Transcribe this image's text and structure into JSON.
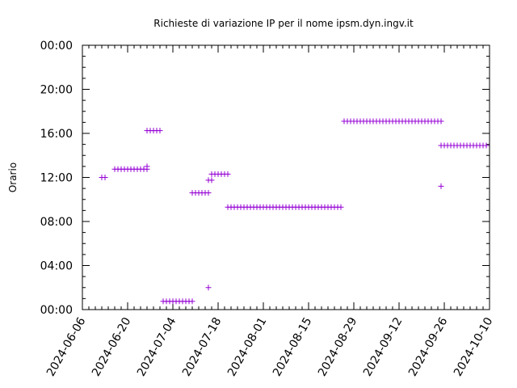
{
  "chart_data": {
    "type": "scatter",
    "title": "Richieste di variazione IP per il nome ipsm.dyn.ingv.it",
    "ylabel": "Orario",
    "xlabel": "",
    "xlim": [
      "2024-06-06",
      "2024-10-10"
    ],
    "ylim": [
      0,
      24
    ],
    "x_ticks": [
      "2024-06-06",
      "2024-06-20",
      "2024-07-04",
      "2024-07-18",
      "2024-08-01",
      "2024-08-15",
      "2024-08-29",
      "2024-09-12",
      "2024-09-26",
      "2024-10-10"
    ],
    "y_ticks": [
      {
        "v": 0,
        "label": "00:00"
      },
      {
        "v": 4,
        "label": "04:00"
      },
      {
        "v": 8,
        "label": "08:00"
      },
      {
        "v": 12,
        "label": "12:00"
      },
      {
        "v": 16,
        "label": "16:00"
      },
      {
        "v": 20,
        "label": "20:00"
      },
      {
        "v": 24,
        "label": "00:00"
      }
    ],
    "marker": "+",
    "color": "#9400d3",
    "grid": false,
    "series": [
      {
        "points": [
          [
            "2024-06-12",
            12.0
          ],
          [
            "2024-06-13",
            12.0
          ],
          [
            "2024-06-16",
            12.75
          ],
          [
            "2024-06-17",
            12.75
          ],
          [
            "2024-06-18",
            12.75
          ],
          [
            "2024-06-19",
            12.75
          ],
          [
            "2024-06-20",
            12.75
          ],
          [
            "2024-06-21",
            12.75
          ],
          [
            "2024-06-22",
            12.75
          ],
          [
            "2024-06-23",
            12.75
          ],
          [
            "2024-06-24",
            12.75
          ],
          [
            "2024-06-25",
            12.75
          ],
          [
            "2024-06-26",
            12.75
          ],
          [
            "2024-06-26",
            13.0
          ],
          [
            "2024-06-26",
            16.25
          ],
          [
            "2024-06-27",
            16.25
          ],
          [
            "2024-06-28",
            16.25
          ],
          [
            "2024-06-29",
            16.25
          ],
          [
            "2024-06-30",
            16.25
          ],
          [
            "2024-07-01",
            0.75
          ],
          [
            "2024-07-02",
            0.75
          ],
          [
            "2024-07-03",
            0.75
          ],
          [
            "2024-07-04",
            0.75
          ],
          [
            "2024-07-05",
            0.75
          ],
          [
            "2024-07-06",
            0.75
          ],
          [
            "2024-07-07",
            0.75
          ],
          [
            "2024-07-08",
            0.75
          ],
          [
            "2024-07-09",
            0.75
          ],
          [
            "2024-07-10",
            0.75
          ],
          [
            "2024-07-10",
            10.6
          ],
          [
            "2024-07-11",
            10.6
          ],
          [
            "2024-07-12",
            10.6
          ],
          [
            "2024-07-13",
            10.6
          ],
          [
            "2024-07-14",
            10.6
          ],
          [
            "2024-07-15",
            10.6
          ],
          [
            "2024-07-15",
            2.0
          ],
          [
            "2024-07-15",
            11.75
          ],
          [
            "2024-07-16",
            11.75
          ],
          [
            "2024-07-16",
            12.3
          ],
          [
            "2024-07-17",
            12.3
          ],
          [
            "2024-07-18",
            12.3
          ],
          [
            "2024-07-19",
            12.3
          ],
          [
            "2024-07-20",
            12.3
          ],
          [
            "2024-07-21",
            12.3
          ],
          [
            "2024-07-21",
            9.3
          ],
          [
            "2024-07-22",
            9.3
          ],
          [
            "2024-07-23",
            9.3
          ],
          [
            "2024-07-24",
            9.3
          ],
          [
            "2024-07-25",
            9.3
          ],
          [
            "2024-07-26",
            9.3
          ],
          [
            "2024-07-27",
            9.3
          ],
          [
            "2024-07-28",
            9.3
          ],
          [
            "2024-07-29",
            9.3
          ],
          [
            "2024-07-30",
            9.3
          ],
          [
            "2024-07-31",
            9.3
          ],
          [
            "2024-08-01",
            9.3
          ],
          [
            "2024-08-02",
            9.3
          ],
          [
            "2024-08-03",
            9.3
          ],
          [
            "2024-08-04",
            9.3
          ],
          [
            "2024-08-05",
            9.3
          ],
          [
            "2024-08-06",
            9.3
          ],
          [
            "2024-08-07",
            9.3
          ],
          [
            "2024-08-08",
            9.3
          ],
          [
            "2024-08-09",
            9.3
          ],
          [
            "2024-08-10",
            9.3
          ],
          [
            "2024-08-11",
            9.3
          ],
          [
            "2024-08-12",
            9.3
          ],
          [
            "2024-08-13",
            9.3
          ],
          [
            "2024-08-14",
            9.3
          ],
          [
            "2024-08-15",
            9.3
          ],
          [
            "2024-08-16",
            9.3
          ],
          [
            "2024-08-17",
            9.3
          ],
          [
            "2024-08-18",
            9.3
          ],
          [
            "2024-08-19",
            9.3
          ],
          [
            "2024-08-20",
            9.3
          ],
          [
            "2024-08-21",
            9.3
          ],
          [
            "2024-08-22",
            9.3
          ],
          [
            "2024-08-23",
            9.3
          ],
          [
            "2024-08-24",
            9.3
          ],
          [
            "2024-08-25",
            9.3
          ],
          [
            "2024-08-26",
            17.1
          ],
          [
            "2024-08-27",
            17.1
          ],
          [
            "2024-08-28",
            17.1
          ],
          [
            "2024-08-29",
            17.1
          ],
          [
            "2024-08-30",
            17.1
          ],
          [
            "2024-08-31",
            17.1
          ],
          [
            "2024-09-01",
            17.1
          ],
          [
            "2024-09-02",
            17.1
          ],
          [
            "2024-09-03",
            17.1
          ],
          [
            "2024-09-04",
            17.1
          ],
          [
            "2024-09-05",
            17.1
          ],
          [
            "2024-09-06",
            17.1
          ],
          [
            "2024-09-07",
            17.1
          ],
          [
            "2024-09-08",
            17.1
          ],
          [
            "2024-09-09",
            17.1
          ],
          [
            "2024-09-10",
            17.1
          ],
          [
            "2024-09-11",
            17.1
          ],
          [
            "2024-09-12",
            17.1
          ],
          [
            "2024-09-13",
            17.1
          ],
          [
            "2024-09-14",
            17.1
          ],
          [
            "2024-09-15",
            17.1
          ],
          [
            "2024-09-16",
            17.1
          ],
          [
            "2024-09-17",
            17.1
          ],
          [
            "2024-09-18",
            17.1
          ],
          [
            "2024-09-19",
            17.1
          ],
          [
            "2024-09-20",
            17.1
          ],
          [
            "2024-09-21",
            17.1
          ],
          [
            "2024-09-22",
            17.1
          ],
          [
            "2024-09-23",
            17.1
          ],
          [
            "2024-09-24",
            17.1
          ],
          [
            "2024-09-25",
            17.1
          ],
          [
            "2024-09-25",
            11.2
          ],
          [
            "2024-09-25",
            14.9
          ],
          [
            "2024-09-26",
            14.9
          ],
          [
            "2024-09-27",
            14.9
          ],
          [
            "2024-09-28",
            14.9
          ],
          [
            "2024-09-29",
            14.9
          ],
          [
            "2024-09-30",
            14.9
          ],
          [
            "2024-10-01",
            14.9
          ],
          [
            "2024-10-02",
            14.9
          ],
          [
            "2024-10-03",
            14.9
          ],
          [
            "2024-10-04",
            14.9
          ],
          [
            "2024-10-05",
            14.9
          ],
          [
            "2024-10-06",
            14.9
          ],
          [
            "2024-10-07",
            14.9
          ],
          [
            "2024-10-08",
            14.9
          ],
          [
            "2024-10-09",
            14.9
          ]
        ]
      }
    ]
  }
}
